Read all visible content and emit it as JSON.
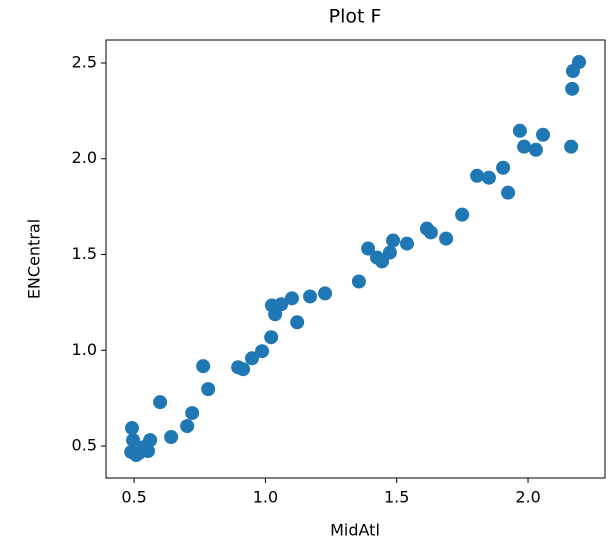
{
  "chart_data": {
    "type": "scatter",
    "title": "Plot F",
    "xlabel": "MidAtl",
    "ylabel": "ENCentral",
    "series": [
      {
        "color": "#1f77b4",
        "x": [
          2.194,
          2.171,
          2.168,
          2.164,
          1.969,
          2.057,
          1.985,
          2.03,
          1.905,
          1.806,
          1.851,
          1.924,
          1.749,
          1.615,
          1.63,
          1.688,
          1.486,
          1.539,
          1.391,
          1.474,
          1.425,
          1.444,
          1.356,
          1.227,
          1.17,
          1.101,
          1.06,
          1.025,
          1.037,
          1.121,
          1.022,
          0.987,
          0.949,
          0.896,
          0.915,
          0.763,
          0.782,
          0.599,
          0.721,
          0.702,
          0.641,
          0.492,
          0.561,
          0.496,
          0.553,
          0.489,
          0.519,
          0.508,
          0.538
        ],
        "values": [
          2.505,
          2.458,
          2.365,
          2.063,
          2.146,
          2.125,
          2.063,
          2.047,
          1.953,
          1.911,
          1.901,
          1.823,
          1.708,
          1.635,
          1.615,
          1.583,
          1.573,
          1.557,
          1.531,
          1.51,
          1.484,
          1.464,
          1.359,
          1.297,
          1.281,
          1.271,
          1.24,
          1.234,
          1.188,
          1.146,
          1.068,
          0.995,
          0.958,
          0.911,
          0.901,
          0.917,
          0.797,
          0.729,
          0.672,
          0.604,
          0.547,
          0.594,
          0.531,
          0.531,
          0.474,
          0.469,
          0.464,
          0.453,
          0.495
        ]
      }
    ],
    "xlim": [
      0.393,
      2.293
    ],
    "ylim": [
      0.333,
      2.62
    ],
    "xticks": [
      0.5,
      1.0,
      1.5,
      2.0
    ],
    "yticks": [
      0.5,
      1.0,
      1.5,
      2.0,
      2.5
    ]
  }
}
